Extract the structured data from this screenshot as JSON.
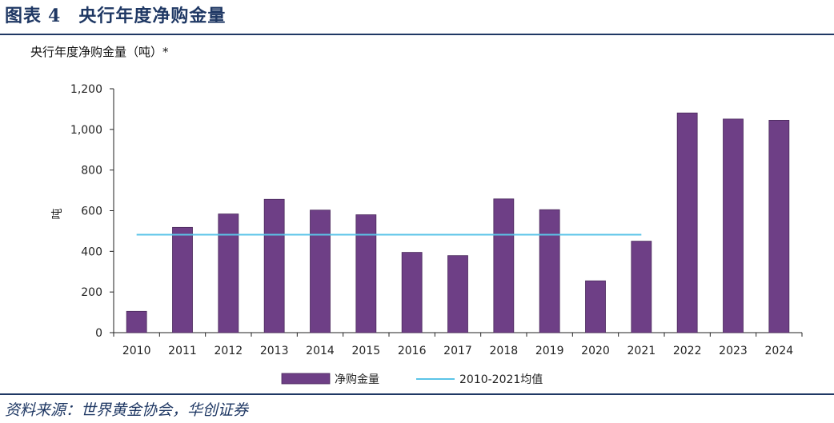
{
  "figure": {
    "label": "图表",
    "number": "4",
    "title": "央行年度净购金量"
  },
  "source": "资料来源：世界黄金协会，华创证券",
  "colors": {
    "bar": "#6e3f86",
    "avg_line": "#5bc4e8",
    "rule": "#1f3864",
    "axis": "#222222"
  },
  "chart_data": {
    "type": "bar",
    "title": "央行年度净购金量（吨）*",
    "ylabel": "吨",
    "xlabel": "",
    "ylim": [
      0,
      1200
    ],
    "yticks": [
      0,
      200,
      400,
      600,
      800,
      1000,
      1200
    ],
    "ytick_labels": [
      "0",
      "200",
      "400",
      "600",
      "800",
      "1,000",
      "1,200"
    ],
    "categories": [
      "2010",
      "2011",
      "2012",
      "2013",
      "2014",
      "2015",
      "2016",
      "2017",
      "2018",
      "2019",
      "2020",
      "2021",
      "2022",
      "2023",
      "2024"
    ],
    "series": [
      {
        "name": "净购金量",
        "type": "bar",
        "values": [
          105,
          518,
          584,
          656,
          603,
          580,
          395,
          379,
          658,
          605,
          255,
          450,
          1081,
          1051,
          1045
        ]
      },
      {
        "name": "2010-2021均值",
        "type": "line",
        "value": 482,
        "x_range": [
          "2010",
          "2021"
        ]
      }
    ],
    "legend_position": "bottom-center",
    "grid": false
  }
}
